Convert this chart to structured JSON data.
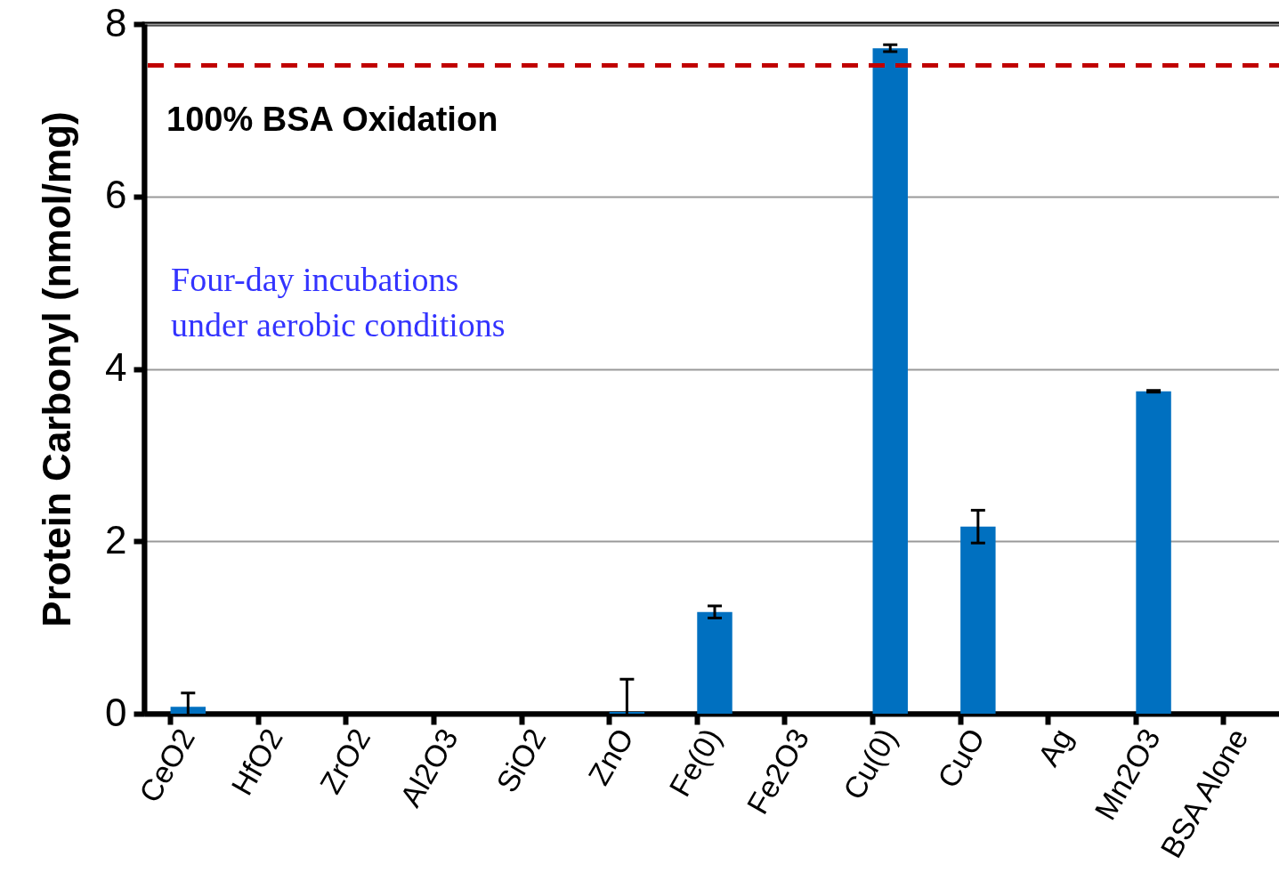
{
  "chart_data": {
    "type": "bar",
    "ylabel": "Protein Carbonyl (nmol/mg)",
    "categories": [
      "CeO2",
      "HfO2",
      "ZrO2",
      "Al2O3",
      "SiO2",
      "ZnO",
      "Fe(0)",
      "Fe2O3",
      "Cu(0)",
      "CuO",
      "Ag",
      "Mn2O3",
      "BSA Alone"
    ],
    "values": [
      0.08,
      0,
      0,
      0,
      0,
      0.02,
      1.18,
      0,
      7.72,
      2.17,
      0,
      3.74,
      0
    ],
    "errors": [
      [
        0,
        0.24
      ],
      null,
      null,
      null,
      null,
      [
        0,
        0.4
      ],
      0.07,
      null,
      0.04,
      0.19,
      null,
      0.01,
      null
    ],
    "color": "#0070c0",
    "ylim": [
      0,
      8
    ],
    "yticks": [
      0,
      2,
      4,
      6,
      8
    ],
    "grid": "y",
    "ref_lines": [
      {
        "axis": "y",
        "value": 7.52,
        "label": "100% BSA Oxidation",
        "color": "#c00000",
        "line_style": "dashed"
      }
    ],
    "annotations": [
      "Four-day incubations\nunder aerobic conditions"
    ]
  }
}
